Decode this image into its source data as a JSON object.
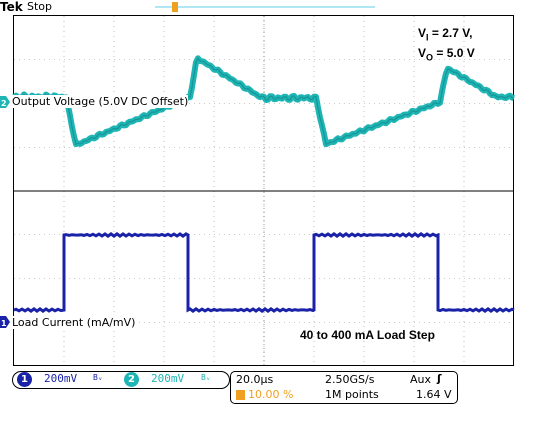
{
  "header": {
    "brand": "Tek",
    "state": "Stop"
  },
  "traces": {
    "ch2": {
      "number": "2",
      "label": "Output Voltage (5.0V DC Offset)",
      "color": "#1fb5b5"
    },
    "ch1": {
      "number": "1",
      "label": "Load Current (mA/mV)",
      "color": "#1a23a8"
    }
  },
  "annotations": {
    "vi_prefix": "V",
    "vi_sub": "I",
    "vi_value": " = 2.7 V,",
    "vo_prefix": "V",
    "vo_sub": "O",
    "vo_value": " = 5.0 V",
    "load_step": "40 to 400 mA Load Step"
  },
  "status": {
    "ch1_num": "1",
    "ch1_scale": "200mV",
    "ch1_bw": "Bᵥ",
    "ch2_num": "2",
    "ch2_scale": "200mV",
    "ch2_bw": "Bᵥ",
    "timebase": "20.0μs",
    "sample_rate": "2.50GS/s",
    "trigger_source": "Aux",
    "trigger_slope": "ʃ",
    "trigger_position": "10.00 %",
    "record_length": "1M points",
    "trigger_level": "1.64 V"
  },
  "colors": {
    "ch1": "#1a23a8",
    "ch2": "#1fb5b5",
    "trigger": "#f0a020",
    "grid": "#000000"
  }
}
